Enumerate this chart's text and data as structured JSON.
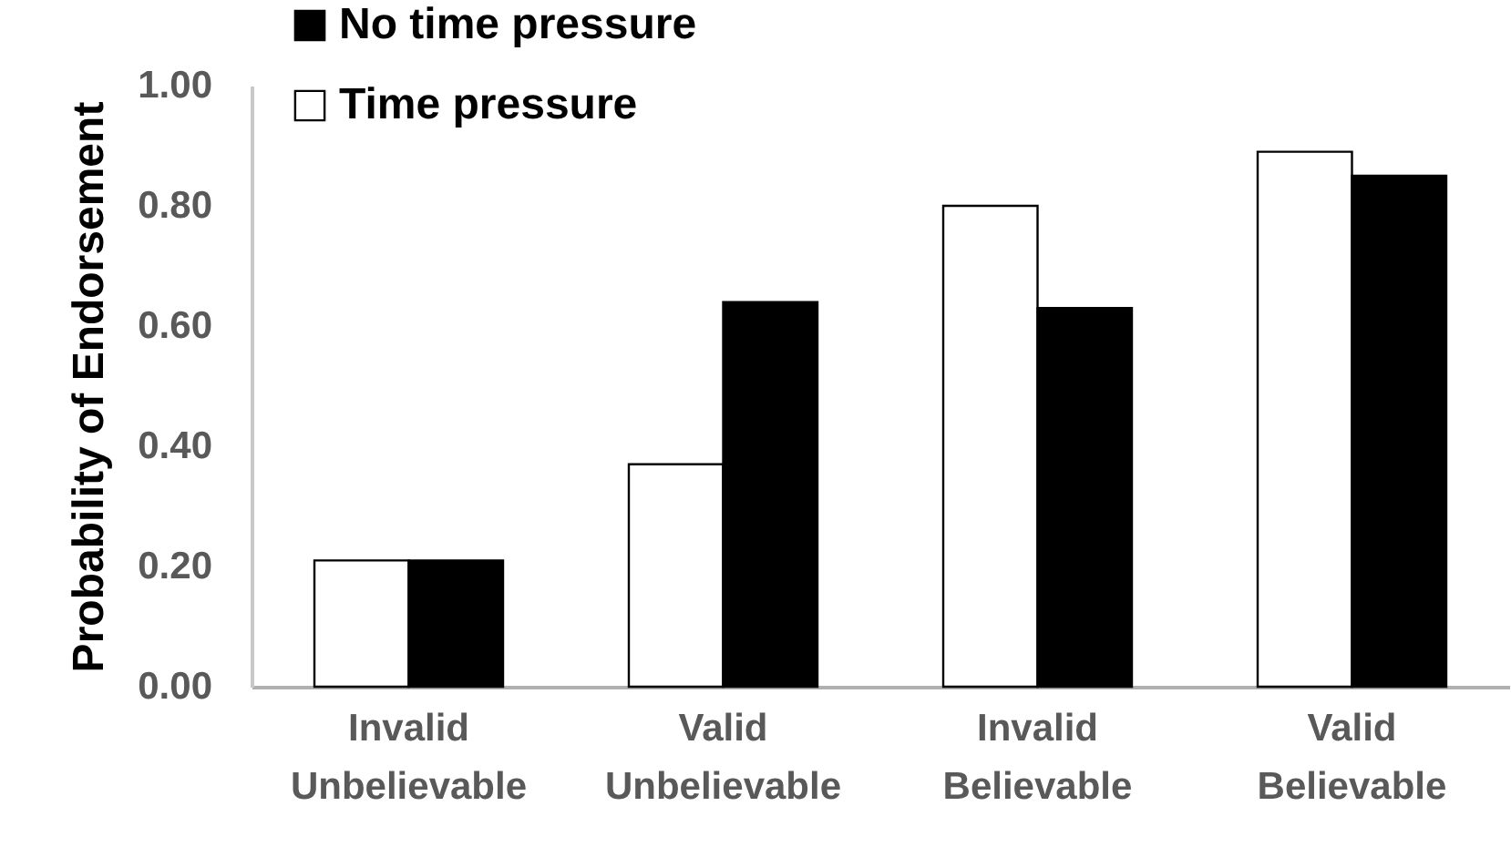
{
  "chart_data": {
    "type": "bar",
    "ylabel": "Probability of Endorsement",
    "categories": [
      "Invalid\nUnbelievable",
      "Valid\nUnbelievable",
      "Invalid\nBelievable",
      "Valid\nBelievable"
    ],
    "series": [
      {
        "name": "Time pressure",
        "color": "#ffffff",
        "values": [
          0.21,
          0.37,
          0.8,
          0.89
        ]
      },
      {
        "name": "No time pressure",
        "color": "#000000",
        "values": [
          0.21,
          0.64,
          0.63,
          0.85
        ]
      }
    ],
    "ylim": [
      0,
      1
    ],
    "yticks": [
      {
        "value": 0,
        "label": "0.00"
      },
      {
        "value": 0.2,
        "label": "0.20"
      },
      {
        "value": 0.4,
        "label": "0.40"
      },
      {
        "value": 0.6,
        "label": "0.60"
      },
      {
        "value": 0.8,
        "label": "0.80"
      },
      {
        "value": 1,
        "label": "1.00"
      }
    ],
    "grid": false,
    "legend": "top left"
  }
}
